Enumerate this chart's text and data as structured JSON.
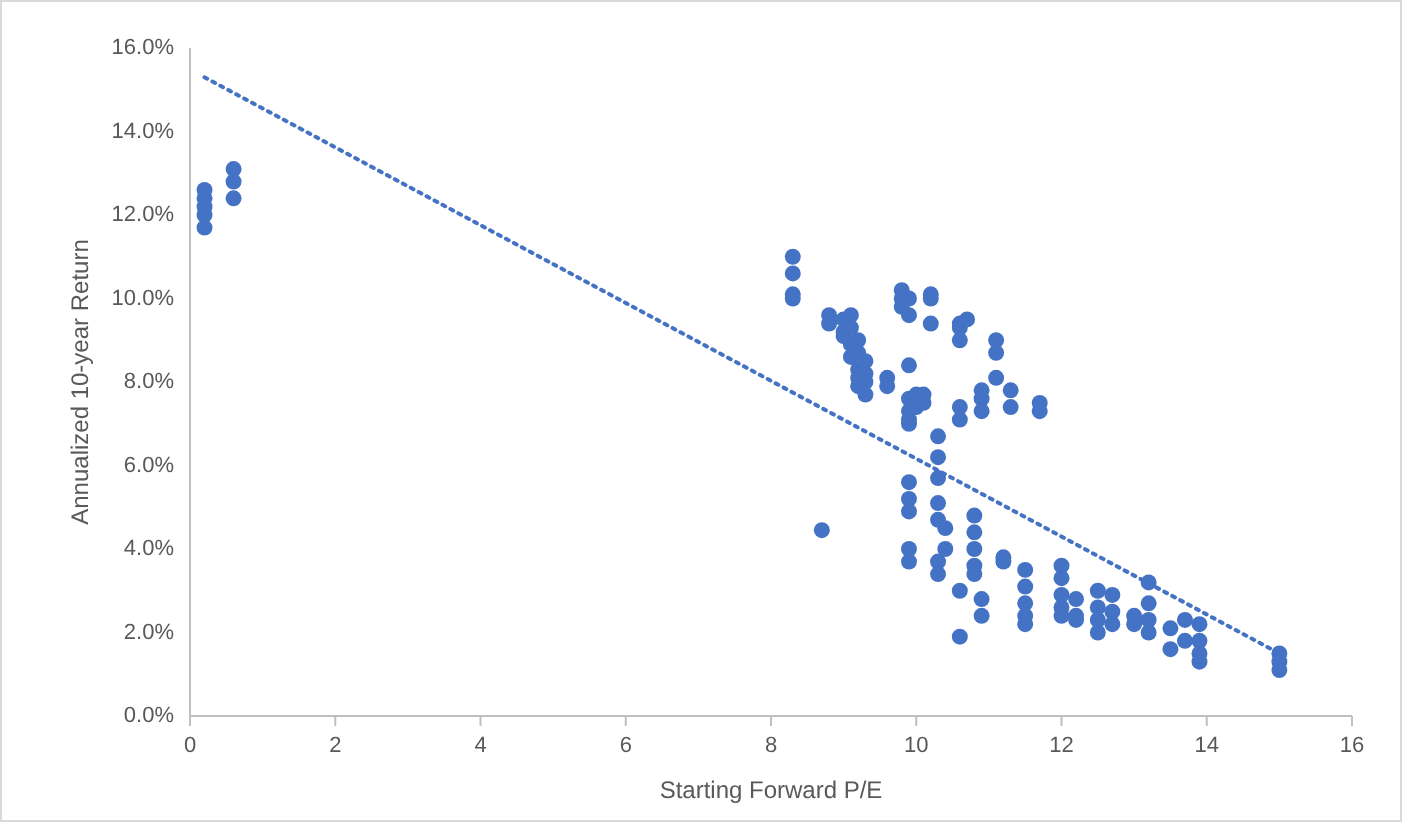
{
  "chart_data": {
    "type": "scatter",
    "xlabel": "Starting Forward P/E",
    "ylabel": "Annualized 10-year Return",
    "xlim": [
      0,
      16
    ],
    "xticks": [
      0,
      2,
      4,
      6,
      8,
      10,
      12,
      14,
      16
    ],
    "ylim": [
      0,
      16
    ],
    "yticks": [
      {
        "value": 0,
        "label": "0.0%"
      },
      {
        "value": 2,
        "label": "2.0%"
      },
      {
        "value": 4,
        "label": "4.0%"
      },
      {
        "value": 6,
        "label": "6.0%"
      },
      {
        "value": 8,
        "label": "8.0%"
      },
      {
        "value": 10,
        "label": "10.0%"
      },
      {
        "value": 12,
        "label": "12.0%"
      },
      {
        "value": 14,
        "label": "14.0%"
      },
      {
        "value": 16,
        "label": "16.0%"
      }
    ],
    "grid": false,
    "series": [
      {
        "color": "#4472c4",
        "marker": "circle",
        "x": [
          0.2,
          0.2,
          0.2,
          0.2,
          0.2,
          0.6,
          0.6,
          0.6,
          8.3,
          8.3,
          8.3,
          8.3,
          8.7,
          8.8,
          8.8,
          9.0,
          9.0,
          9.0,
          9.1,
          9.1,
          9.1,
          9.1,
          9.2,
          9.2,
          9.2,
          9.2,
          9.2,
          9.3,
          9.3,
          9.3,
          9.3,
          9.6,
          9.6,
          9.8,
          9.8,
          9.8,
          9.9,
          9.9,
          9.9,
          9.9,
          9.9,
          9.9,
          9.9,
          9.9,
          9.9,
          9.9,
          9.9,
          9.9,
          10.0,
          10.0,
          10.1,
          10.1,
          10.2,
          10.2,
          10.2,
          10.3,
          10.3,
          10.3,
          10.3,
          10.3,
          10.3,
          10.3,
          10.4,
          10.4,
          10.6,
          10.6,
          10.6,
          10.6,
          10.6,
          10.6,
          10.6,
          10.7,
          10.8,
          10.8,
          10.8,
          10.8,
          10.8,
          10.9,
          10.9,
          10.9,
          10.9,
          10.9,
          11.1,
          11.1,
          11.1,
          11.2,
          11.2,
          11.3,
          11.3,
          11.5,
          11.5,
          11.5,
          11.5,
          11.5,
          11.7,
          11.7,
          12.0,
          12.0,
          12.0,
          12.0,
          12.0,
          12.2,
          12.2,
          12.2,
          12.5,
          12.5,
          12.5,
          12.5,
          12.7,
          12.7,
          12.7,
          13.0,
          13.0,
          13.2,
          13.2,
          13.2,
          13.2,
          13.5,
          13.5,
          13.7,
          13.7,
          13.9,
          13.9,
          13.9,
          13.9,
          15.0,
          15.0,
          15.0
        ],
        "values": [
          11.7,
          12.0,
          12.2,
          12.4,
          12.6,
          12.4,
          12.8,
          13.1,
          11.0,
          10.6,
          10.1,
          10.0,
          4.45,
          9.6,
          9.4,
          9.5,
          9.2,
          9.1,
          9.6,
          9.3,
          8.9,
          8.6,
          9.0,
          8.7,
          8.3,
          8.1,
          7.9,
          8.5,
          8.2,
          8.0,
          7.7,
          8.1,
          7.9,
          10.2,
          10.0,
          9.8,
          10.0,
          9.6,
          8.4,
          7.6,
          7.3,
          7.1,
          7.0,
          5.6,
          5.2,
          4.9,
          4.0,
          3.7,
          7.7,
          7.4,
          7.5,
          7.7,
          10.1,
          10.0,
          9.4,
          6.7,
          6.2,
          5.7,
          5.1,
          4.7,
          3.7,
          3.4,
          4.5,
          4.0,
          9.4,
          9.3,
          9.0,
          7.4,
          7.1,
          3.0,
          1.9,
          9.5,
          4.8,
          4.4,
          4.0,
          3.6,
          3.4,
          7.8,
          7.6,
          7.3,
          2.8,
          2.4,
          9.0,
          8.7,
          8.1,
          3.8,
          3.7,
          7.8,
          7.4,
          3.5,
          3.1,
          2.7,
          2.4,
          2.2,
          7.5,
          7.3,
          3.6,
          3.3,
          2.9,
          2.6,
          2.4,
          2.8,
          2.4,
          2.3,
          3.0,
          2.6,
          2.3,
          2.0,
          2.9,
          2.5,
          2.2,
          2.4,
          2.2,
          3.2,
          2.7,
          2.3,
          2.0,
          2.1,
          1.6,
          2.3,
          1.8,
          2.2,
          1.8,
          1.5,
          1.3,
          1.5,
          1.3,
          1.1
        ]
      },
      {
        "type": "line",
        "color": "#4472c4",
        "marker": "none",
        "line_style": "dotted",
        "x": [
          0.2,
          15.0
        ],
        "values": [
          15.3,
          1.5
        ]
      }
    ]
  }
}
